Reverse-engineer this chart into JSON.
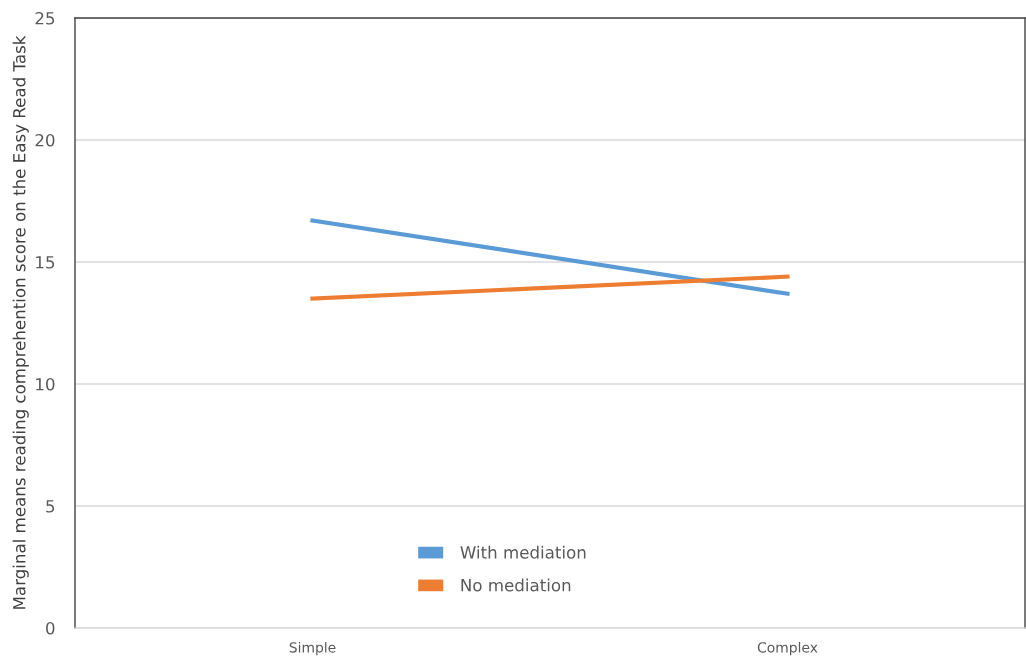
{
  "chart_data": {
    "type": "line",
    "ylabel": "Marginal means reading comprehention score on the Easy Read Task",
    "categories": [
      "Simple",
      "Complex"
    ],
    "series": [
      {
        "name": "With mediation",
        "color": "#5b9bd5",
        "values": [
          16.7,
          13.7
        ]
      },
      {
        "name": "No mediation",
        "color": "#ed7d31",
        "values": [
          13.5,
          14.4
        ]
      }
    ],
    "ylim": [
      0,
      25
    ],
    "yticks": [
      0,
      5,
      10,
      15,
      20,
      25
    ],
    "grid": "y",
    "legend": "bottom",
    "marker": "none",
    "line_style": "solid"
  }
}
